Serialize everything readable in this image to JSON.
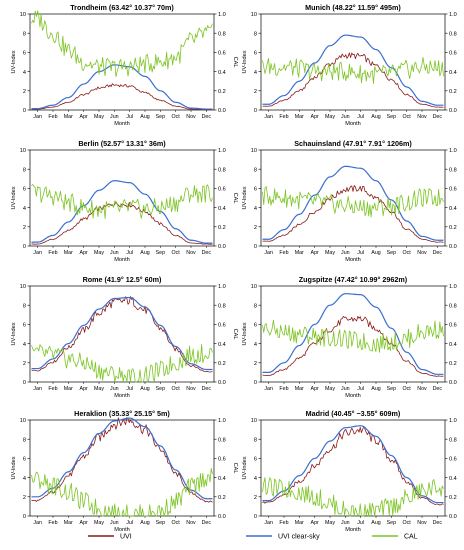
{
  "figure": {
    "legend": [
      {
        "name": "UVI",
        "color": "#8b1a1a"
      },
      {
        "name": "UVI clear-sky",
        "color": "#3a6fd1"
      },
      {
        "name": "CAL",
        "color": "#7cc424"
      }
    ]
  },
  "chart_data": [
    {
      "type": "line",
      "title": "Trondheim (63.42° 10.37° 70m)",
      "xlabel": "Month",
      "ylabel": "UV-Index",
      "y2label": "CAL",
      "categories": [
        "Jan",
        "Feb",
        "Mar",
        "Apr",
        "May",
        "Jun",
        "Jul",
        "Aug",
        "Sep",
        "Oct",
        "Nov",
        "Dec"
      ],
      "ylim": [
        0,
        10
      ],
      "y2lim": [
        0,
        1
      ],
      "yticks": [
        "0",
        "2",
        "4",
        "6",
        "8",
        "10"
      ],
      "y2ticks": [
        "0.0",
        "0.2",
        "0.4",
        "0.6",
        "0.8",
        "1.0"
      ],
      "grid": false,
      "series": [
        {
          "name": "UVI",
          "axis": "left",
          "color": "#8b1a1a",
          "values": [
            0.1,
            0.3,
            0.8,
            1.6,
            2.3,
            2.6,
            2.5,
            1.8,
            1.0,
            0.4,
            0.1,
            0.05
          ]
        },
        {
          "name": "UVI clear-sky",
          "axis": "left",
          "color": "#3a6fd1",
          "values": [
            0.15,
            0.5,
            1.3,
            2.7,
            4.0,
            4.7,
            4.5,
            3.5,
            2.0,
            0.8,
            0.2,
            0.1
          ]
        },
        {
          "name": "CAL",
          "axis": "right",
          "color": "#7cc424",
          "values": [
            0.95,
            0.8,
            0.62,
            0.5,
            0.45,
            0.44,
            0.45,
            0.48,
            0.5,
            0.55,
            0.72,
            0.8
          ]
        }
      ]
    },
    {
      "type": "line",
      "title": "Munich (48.22° 11.59° 495m)",
      "xlabel": "Month",
      "ylabel": "UV-Index",
      "y2label": "CAL",
      "categories": [
        "Jan",
        "Feb",
        "Mar",
        "Apr",
        "May",
        "Jun",
        "Jul",
        "Aug",
        "Sep",
        "Oct",
        "Nov",
        "Dec"
      ],
      "ylim": [
        0,
        10
      ],
      "y2lim": [
        0,
        1
      ],
      "yticks": [
        "0",
        "2",
        "4",
        "6",
        "8",
        "10"
      ],
      "y2ticks": [
        "0.0",
        "0.2",
        "0.4",
        "0.6",
        "0.8",
        "1.0"
      ],
      "grid": false,
      "series": [
        {
          "name": "UVI",
          "axis": "left",
          "color": "#8b1a1a",
          "values": [
            0.4,
            1.0,
            2.0,
            3.4,
            4.8,
            5.7,
            5.6,
            4.6,
            3.2,
            1.6,
            0.6,
            0.3
          ]
        },
        {
          "name": "UVI clear-sky",
          "axis": "left",
          "color": "#3a6fd1",
          "values": [
            0.6,
            1.5,
            3.0,
            4.9,
            6.7,
            7.8,
            7.6,
            6.3,
            4.4,
            2.4,
            0.9,
            0.5
          ]
        },
        {
          "name": "CAL",
          "axis": "right",
          "color": "#7cc424",
          "values": [
            0.45,
            0.45,
            0.43,
            0.4,
            0.4,
            0.4,
            0.38,
            0.37,
            0.38,
            0.42,
            0.45,
            0.44
          ]
        }
      ]
    },
    {
      "type": "line",
      "title": "Berlin (52.57° 13.31° 36m)",
      "xlabel": "Month",
      "ylabel": "UV-Index",
      "y2label": "CAL",
      "categories": [
        "Jan",
        "Feb",
        "Mar",
        "Apr",
        "May",
        "Jun",
        "Jul",
        "Aug",
        "Sep",
        "Oct",
        "Nov",
        "Dec"
      ],
      "ylim": [
        0,
        10
      ],
      "y2lim": [
        0,
        1
      ],
      "yticks": [
        "0",
        "2",
        "4",
        "6",
        "8",
        "10"
      ],
      "y2ticks": [
        "0.0",
        "0.2",
        "0.4",
        "0.6",
        "0.8",
        "1.0"
      ],
      "grid": false,
      "series": [
        {
          "name": "UVI",
          "axis": "left",
          "color": "#8b1a1a",
          "values": [
            0.2,
            0.7,
            1.6,
            2.8,
            3.9,
            4.4,
            4.3,
            3.6,
            2.3,
            1.1,
            0.3,
            0.2
          ]
        },
        {
          "name": "UVI clear-sky",
          "axis": "left",
          "color": "#3a6fd1",
          "values": [
            0.4,
            1.1,
            2.5,
            4.2,
            5.8,
            6.8,
            6.6,
            5.4,
            3.6,
            1.8,
            0.6,
            0.3
          ]
        },
        {
          "name": "CAL",
          "axis": "right",
          "color": "#7cc424",
          "values": [
            0.55,
            0.52,
            0.45,
            0.4,
            0.38,
            0.38,
            0.4,
            0.38,
            0.4,
            0.45,
            0.55,
            0.55
          ]
        }
      ]
    },
    {
      "type": "line",
      "title": "Schauinsland (47.91° 7.91° 1206m)",
      "xlabel": "Month",
      "ylabel": "UV-Index",
      "y2label": "CAL",
      "categories": [
        "Jan",
        "Feb",
        "Mar",
        "Apr",
        "May",
        "Jun",
        "Jul",
        "Aug",
        "Sep",
        "Oct",
        "Nov",
        "Dec"
      ],
      "ylim": [
        0,
        10
      ],
      "y2lim": [
        0,
        1
      ],
      "yticks": [
        "0",
        "2",
        "4",
        "6",
        "8",
        "10"
      ],
      "y2ticks": [
        "0.0",
        "0.2",
        "0.4",
        "0.6",
        "0.8",
        "1.0"
      ],
      "grid": false,
      "series": [
        {
          "name": "UVI",
          "axis": "left",
          "color": "#8b1a1a",
          "values": [
            0.5,
            1.1,
            2.2,
            3.6,
            5.0,
            5.9,
            6.0,
            5.0,
            3.5,
            1.8,
            0.7,
            0.4
          ]
        },
        {
          "name": "UVI clear-sky",
          "axis": "left",
          "color": "#3a6fd1",
          "values": [
            0.7,
            1.7,
            3.3,
            5.3,
            7.2,
            8.3,
            8.1,
            6.8,
            4.8,
            2.6,
            1.0,
            0.6
          ]
        },
        {
          "name": "CAL",
          "axis": "right",
          "color": "#7cc424",
          "values": [
            0.52,
            0.5,
            0.48,
            0.46,
            0.44,
            0.42,
            0.4,
            0.4,
            0.42,
            0.45,
            0.5,
            0.5
          ]
        }
      ]
    },
    {
      "type": "line",
      "title": "Rome (41.9° 12.5° 60m)",
      "xlabel": "Month",
      "ylabel": "UV-Index",
      "y2label": "CAL",
      "categories": [
        "Jan",
        "Feb",
        "Mar",
        "Apr",
        "May",
        "Jun",
        "Jul",
        "Aug",
        "Sep",
        "Oct",
        "Nov",
        "Dec"
      ],
      "ylim": [
        0,
        10
      ],
      "y2lim": [
        0,
        1
      ],
      "yticks": [
        "0",
        "2",
        "4",
        "6",
        "8",
        "10"
      ],
      "y2ticks": [
        "0.0",
        "0.2",
        "0.4",
        "0.6",
        "0.8",
        "1.0"
      ],
      "grid": false,
      "series": [
        {
          "name": "UVI",
          "axis": "left",
          "color": "#8b1a1a",
          "values": [
            1.2,
            2.1,
            3.6,
            5.4,
            7.2,
            8.3,
            8.5,
            7.5,
            5.6,
            3.4,
            1.7,
            1.1
          ]
        },
        {
          "name": "UVI clear-sky",
          "axis": "left",
          "color": "#3a6fd1",
          "values": [
            1.4,
            2.4,
            4.0,
            5.9,
            7.6,
            8.7,
            8.8,
            7.8,
            5.9,
            3.7,
            1.9,
            1.3
          ]
        },
        {
          "name": "CAL",
          "axis": "right",
          "color": "#7cc424",
          "values": [
            0.3,
            0.28,
            0.24,
            0.2,
            0.12,
            0.08,
            0.05,
            0.06,
            0.12,
            0.2,
            0.28,
            0.3
          ]
        }
      ]
    },
    {
      "type": "line",
      "title": "Zugspitze (47.42° 10.99° 2962m)",
      "xlabel": "Month",
      "ylabel": "UV-Index",
      "y2label": "CAL",
      "categories": [
        "Jan",
        "Feb",
        "Mar",
        "Apr",
        "May",
        "Jun",
        "Jul",
        "Aug",
        "Sep",
        "Oct",
        "Nov",
        "Dec"
      ],
      "ylim": [
        0,
        10
      ],
      "y2lim": [
        0,
        1
      ],
      "yticks": [
        "0",
        "2",
        "4",
        "6",
        "8",
        "10"
      ],
      "y2ticks": [
        "0.0",
        "0.2",
        "0.4",
        "0.6",
        "0.8",
        "1.0"
      ],
      "grid": false,
      "series": [
        {
          "name": "UVI",
          "axis": "left",
          "color": "#8b1a1a",
          "values": [
            0.7,
            1.3,
            2.5,
            4.0,
            5.5,
            6.5,
            6.6,
            5.6,
            4.0,
            2.2,
            0.9,
            0.6
          ]
        },
        {
          "name": "UVI clear-sky",
          "axis": "left",
          "color": "#3a6fd1",
          "values": [
            1.0,
            2.0,
            3.8,
            6.0,
            8.0,
            9.2,
            9.1,
            7.8,
            5.6,
            3.1,
            1.3,
            0.8
          ]
        },
        {
          "name": "CAL",
          "axis": "right",
          "color": "#7cc424",
          "values": [
            0.55,
            0.52,
            0.5,
            0.48,
            0.46,
            0.44,
            0.42,
            0.4,
            0.42,
            0.45,
            0.52,
            0.55
          ]
        }
      ]
    },
    {
      "type": "line",
      "title": "Heraklion (35.33° 25.15° 5m)",
      "xlabel": "Month",
      "ylabel": "UV-Index",
      "y2label": "CAL",
      "categories": [
        "Jan",
        "Feb",
        "Mar",
        "Apr",
        "May",
        "Jun",
        "Jul",
        "Aug",
        "Sep",
        "Oct",
        "Nov",
        "Dec"
      ],
      "ylim": [
        0,
        10
      ],
      "y2lim": [
        0,
        1
      ],
      "yticks": [
        "0",
        "2",
        "4",
        "6",
        "8",
        "10"
      ],
      "y2ticks": [
        "0.0",
        "0.2",
        "0.4",
        "0.6",
        "0.8",
        "1.0"
      ],
      "grid": false,
      "series": [
        {
          "name": "UVI",
          "axis": "left",
          "color": "#8b1a1a",
          "values": [
            1.6,
            2.5,
            4.2,
            6.2,
            8.2,
            9.6,
            10.0,
            9.0,
            7.0,
            4.4,
            2.4,
            1.5
          ]
        },
        {
          "name": "UVI clear-sky",
          "axis": "left",
          "color": "#3a6fd1",
          "values": [
            2.0,
            2.9,
            4.6,
            6.6,
            8.6,
            9.9,
            10.2,
            9.3,
            7.3,
            4.8,
            2.7,
            1.8
          ]
        },
        {
          "name": "CAL",
          "axis": "right",
          "color": "#7cc424",
          "values": [
            0.38,
            0.32,
            0.25,
            0.15,
            0.08,
            0.03,
            0.02,
            0.02,
            0.05,
            0.15,
            0.3,
            0.4
          ]
        }
      ]
    },
    {
      "type": "line",
      "title": "Madrid (40.45° −3.55° 609m)",
      "xlabel": "Month",
      "ylabel": "UV-Index",
      "y2label": "CAL",
      "categories": [
        "Jan",
        "Feb",
        "Mar",
        "Apr",
        "May",
        "Jun",
        "Jul",
        "Aug",
        "Sep",
        "Oct",
        "Nov",
        "Dec"
      ],
      "ylim": [
        0,
        10
      ],
      "y2lim": [
        0,
        1
      ],
      "yticks": [
        "0",
        "2",
        "4",
        "6",
        "8",
        "10"
      ],
      "y2ticks": [
        "0.0",
        "0.2",
        "0.4",
        "0.6",
        "0.8",
        "1.0"
      ],
      "grid": false,
      "series": [
        {
          "name": "UVI",
          "axis": "left",
          "color": "#8b1a1a",
          "values": [
            1.4,
            2.2,
            3.6,
            5.2,
            7.0,
            8.6,
            9.0,
            7.9,
            5.9,
            3.6,
            1.9,
            1.2
          ]
        },
        {
          "name": "UVI clear-sky",
          "axis": "left",
          "color": "#3a6fd1",
          "values": [
            1.6,
            2.6,
            4.2,
            6.0,
            7.8,
            9.2,
            9.4,
            8.3,
            6.3,
            4.0,
            2.1,
            1.4
          ]
        },
        {
          "name": "CAL",
          "axis": "right",
          "color": "#7cc424",
          "values": [
            0.3,
            0.28,
            0.25,
            0.2,
            0.13,
            0.06,
            0.04,
            0.05,
            0.1,
            0.18,
            0.26,
            0.3
          ]
        }
      ]
    }
  ]
}
